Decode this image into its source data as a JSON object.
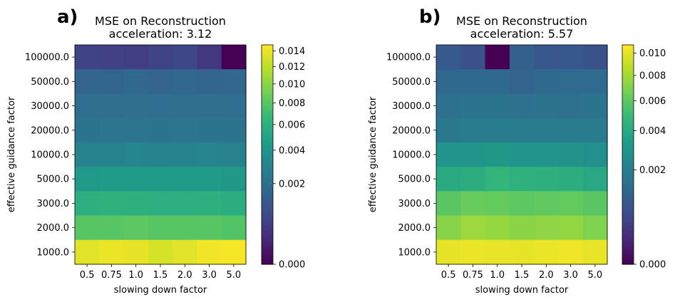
{
  "chart_data": [
    {
      "type": "heatmap",
      "panel_label": "a)",
      "title": "MSE on Reconstruction",
      "subtitle": "acceleration: 3.12",
      "xlabel": "slowing down factor",
      "ylabel": "effective guidance factor",
      "x": [
        "0.5",
        "0.75",
        "1.0",
        "1.5",
        "2.0",
        "3.0",
        "5.0"
      ],
      "y": [
        "100000.0",
        "50000.0",
        "30000.0",
        "20000.0",
        "10000.0",
        "5000.0",
        "3000.0",
        "2000.0",
        "1000.0"
      ],
      "values": [
        [
          0.00062,
          0.00058,
          0.0005,
          0.0006,
          0.0007,
          0.0004,
          0.0
        ],
        [
          0.0015,
          0.00155,
          0.00165,
          0.0015,
          0.0016,
          0.00155,
          0.0016
        ],
        [
          0.0019,
          0.00195,
          0.002,
          0.0019,
          0.00195,
          0.00195,
          0.0019
        ],
        [
          0.0022,
          0.00225,
          0.00225,
          0.0022,
          0.00225,
          0.0022,
          0.00215
        ],
        [
          0.003,
          0.003,
          0.0031,
          0.003,
          0.003,
          0.00305,
          0.003
        ],
        [
          0.0042,
          0.0043,
          0.0044,
          0.0044,
          0.0043,
          0.0043,
          0.0041
        ],
        [
          0.0058,
          0.006,
          0.0059,
          0.0058,
          0.0058,
          0.0059,
          0.0057
        ],
        [
          0.008,
          0.008,
          0.0081,
          0.008,
          0.008,
          0.008,
          0.0078
        ],
        [
          0.0135,
          0.014,
          0.0138,
          0.013,
          0.0135,
          0.0142,
          0.0145
        ]
      ],
      "colorbar": {
        "ticks": [
          0.0,
          0.002,
          0.004,
          0.006,
          0.008,
          0.01,
          0.012,
          0.014
        ],
        "tick_labels": [
          "0.000",
          "0.002",
          "0.004",
          "0.006",
          "0.008",
          "0.010",
          "0.012",
          "0.014"
        ],
        "vmin": 0.0,
        "vmax": 0.0148,
        "scale": "sqrt"
      },
      "colormap": "viridis"
    },
    {
      "type": "heatmap",
      "panel_label": "b)",
      "title": "MSE on Reconstruction",
      "subtitle": "acceleration: 5.57",
      "xlabel": "slowing down factor",
      "ylabel": "effective guidance factor",
      "x": [
        "0.5",
        "0.75",
        "1.0",
        "1.5",
        "2.0",
        "3.0",
        "5.0"
      ],
      "y": [
        "100000.0",
        "50000.0",
        "30000.0",
        "20000.0",
        "10000.0",
        "5000.0",
        "3000.0",
        "2000.0",
        "1000.0"
      ],
      "values": [
        [
          0.00085,
          0.00065,
          0.0,
          0.001,
          0.0008,
          0.0008,
          0.0007
        ],
        [
          0.0012,
          0.0012,
          0.0012,
          0.0011,
          0.0012,
          0.00125,
          0.0013
        ],
        [
          0.0015,
          0.00155,
          0.0016,
          0.0015,
          0.00155,
          0.0015,
          0.0016
        ],
        [
          0.00175,
          0.00185,
          0.0018,
          0.0018,
          0.0018,
          0.0018,
          0.0018
        ],
        [
          0.0029,
          0.0029,
          0.003,
          0.0029,
          0.0029,
          0.0028,
          0.0026
        ],
        [
          0.004,
          0.0042,
          0.0046,
          0.0044,
          0.0043,
          0.0042,
          0.0039
        ],
        [
          0.0059,
          0.0063,
          0.0062,
          0.006,
          0.0061,
          0.0062,
          0.0059
        ],
        [
          0.0072,
          0.0078,
          0.0076,
          0.0073,
          0.0074,
          0.0075,
          0.007
        ],
        [
          0.01,
          0.0102,
          0.0101,
          0.01,
          0.0102,
          0.0103,
          0.0101
        ]
      ],
      "colorbar": {
        "ticks": [
          0.0,
          0.002,
          0.004,
          0.006,
          0.008,
          0.01
        ],
        "tick_labels": [
          "0.000",
          "0.002",
          "0.004",
          "0.006",
          "0.008",
          "0.010"
        ],
        "vmin": 0.0,
        "vmax": 0.0108,
        "scale": "sqrt"
      },
      "colormap": "viridis"
    }
  ]
}
